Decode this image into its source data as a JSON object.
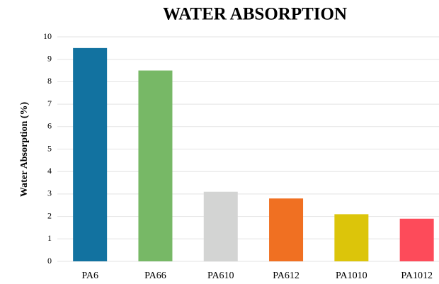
{
  "chart_data": {
    "type": "bar",
    "title": "WATER ABSORPTION",
    "y_label": "Water Absorption (%)",
    "categories": [
      "PA6",
      "PA66",
      "PA610",
      "PA612",
      "PA1010",
      "PA1012"
    ],
    "values": [
      9.5,
      8.5,
      3.1,
      2.8,
      2.1,
      1.9
    ],
    "colors": [
      "#1272a0",
      "#77b866",
      "#d3d4d3",
      "#f07022",
      "#dcc50a",
      "#fd4b5a"
    ],
    "ylim": [
      0,
      10
    ],
    "yticks": [
      0,
      1,
      2,
      3,
      4,
      5,
      6,
      7,
      8,
      9,
      10
    ],
    "grid": true
  }
}
